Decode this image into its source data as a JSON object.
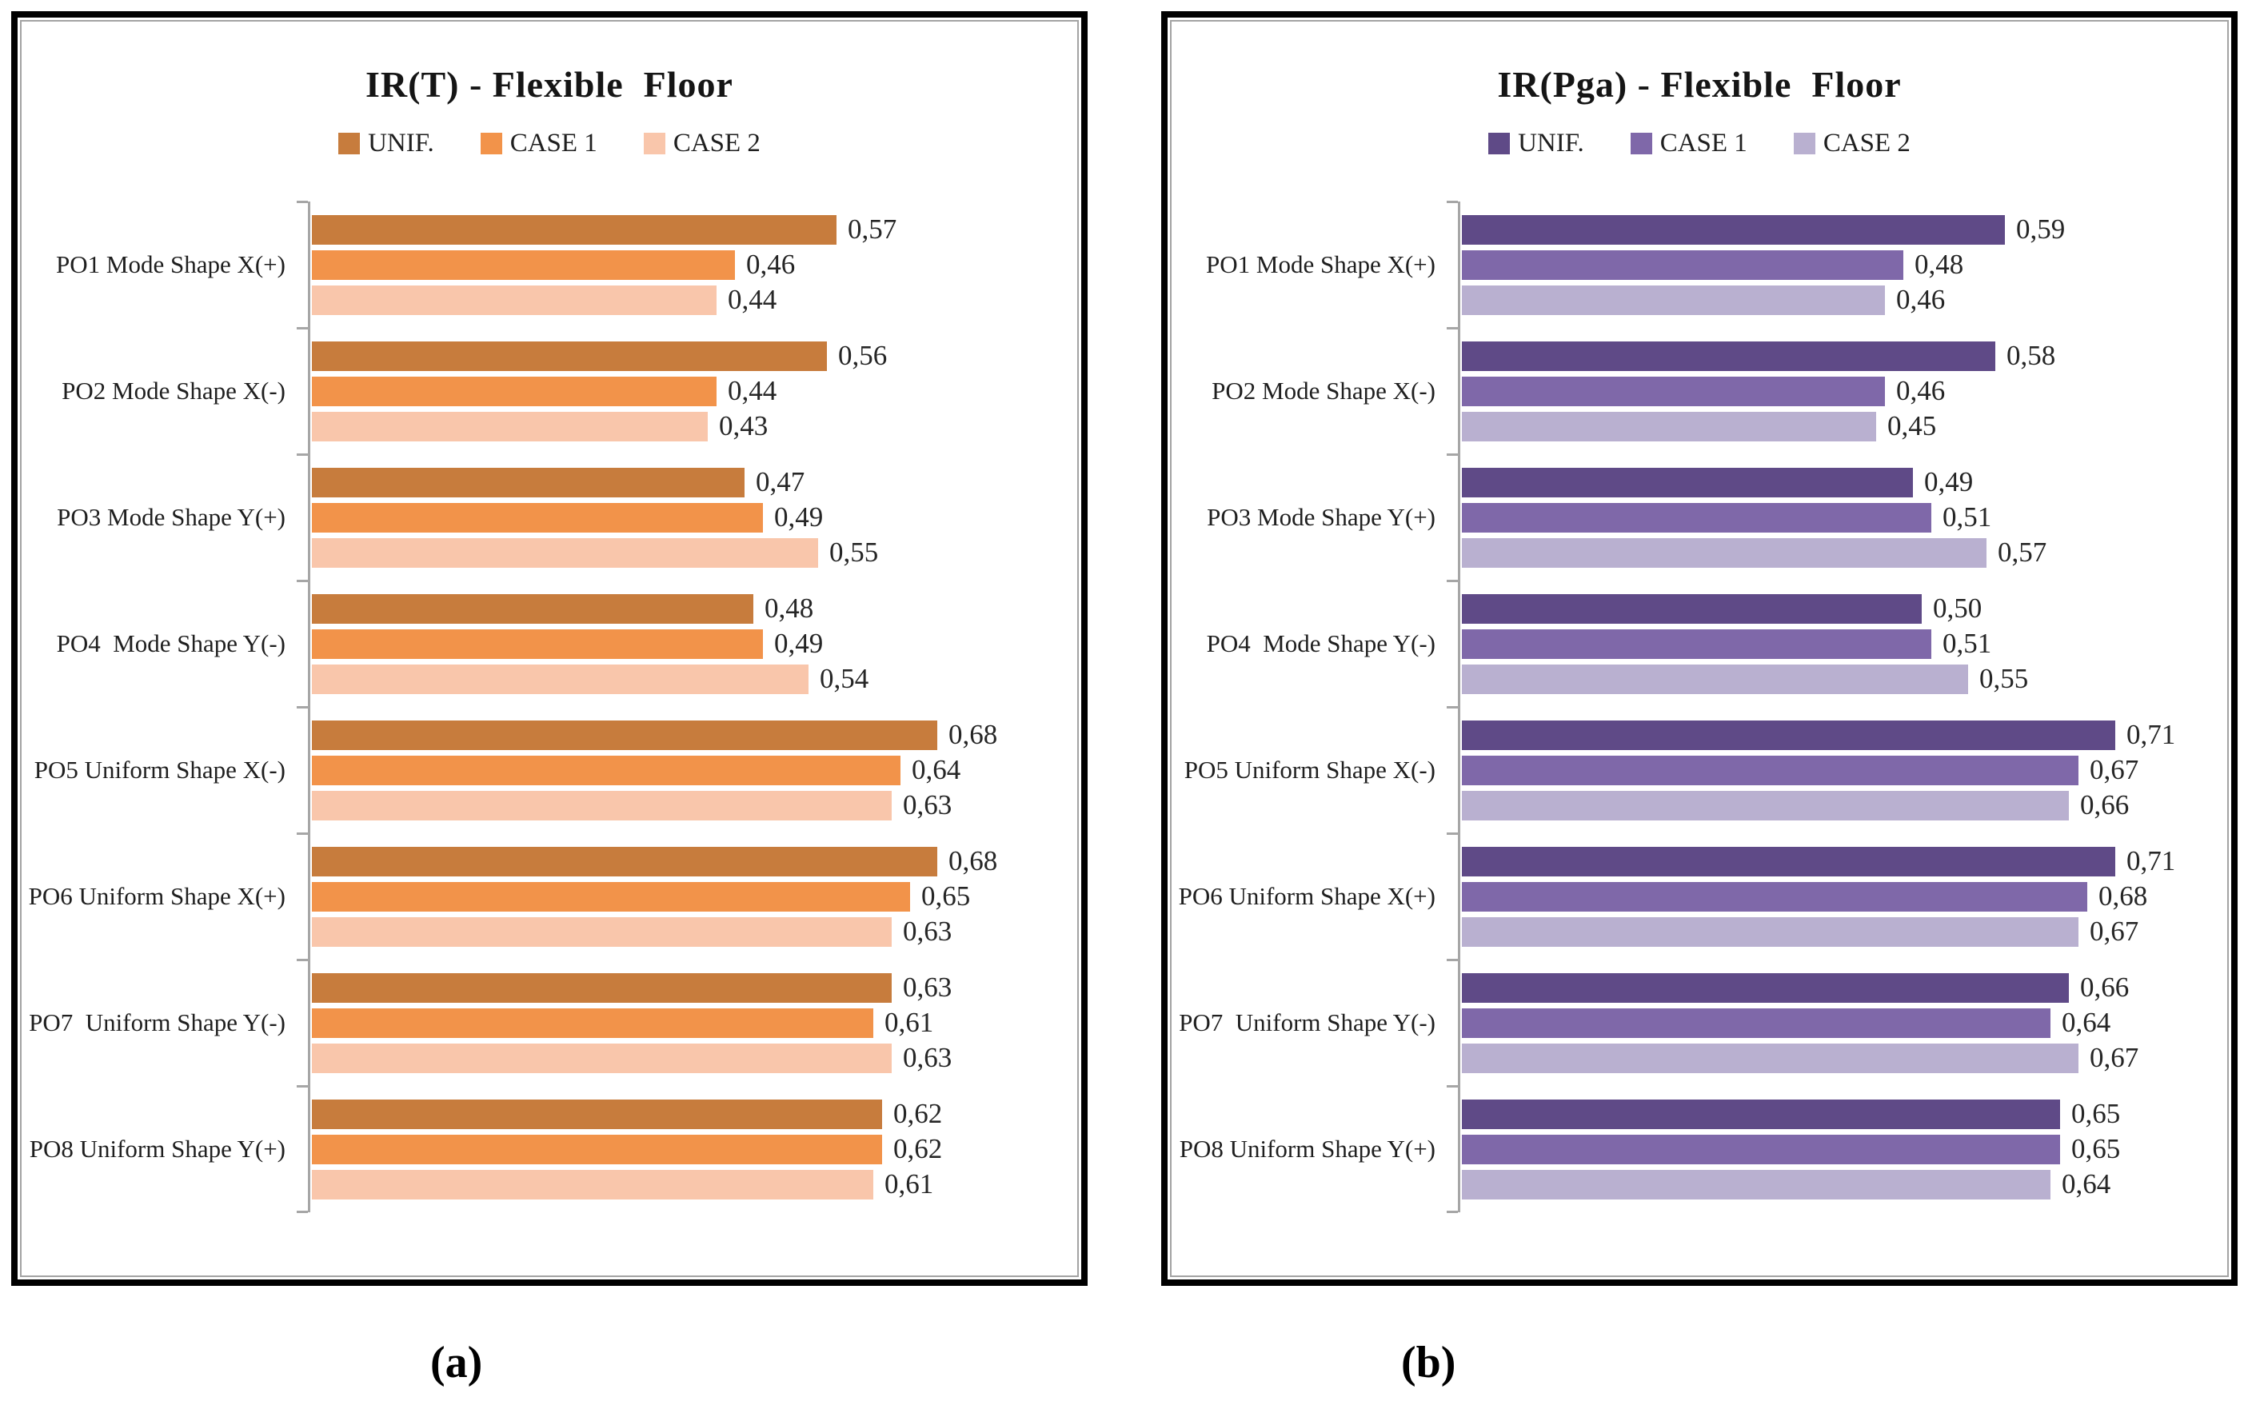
{
  "figure_labels": {
    "a": "(a)",
    "b": "(b)"
  },
  "chart_data": [
    {
      "type": "bar",
      "orientation": "horizontal",
      "title": "IR(T) - Flexible  Floor",
      "legend_position": "top",
      "grid": false,
      "xlim": [
        0,
        0.8
      ],
      "value_label_decimal": "comma",
      "axis_color": "#a6a6a6",
      "categories": [
        "PO1 Mode Shape X(+)",
        "PO2 Mode Shape X(-)",
        "PO3 Mode Shape Y(+)",
        "PO4  Mode Shape Y(-)",
        "PO5 Uniform Shape X(-)",
        "PO6 Uniform Shape X(+)",
        "PO7  Uniform Shape Y(-)",
        "PO8 Uniform Shape Y(+)"
      ],
      "series": [
        {
          "name": "UNIF.",
          "color": "#c77c3d",
          "values": [
            0.57,
            0.56,
            0.47,
            0.48,
            0.68,
            0.68,
            0.63,
            0.62
          ]
        },
        {
          "name": "CASE 1",
          "color": "#f2934a",
          "values": [
            0.46,
            0.44,
            0.49,
            0.49,
            0.64,
            0.65,
            0.61,
            0.62
          ]
        },
        {
          "name": "CASE 2",
          "color": "#f9c6ab",
          "values": [
            0.44,
            0.43,
            0.55,
            0.54,
            0.63,
            0.63,
            0.63,
            0.61
          ]
        }
      ]
    },
    {
      "type": "bar",
      "orientation": "horizontal",
      "title": "IR(Pga) - Flexible  Floor",
      "legend_position": "top",
      "grid": false,
      "xlim": [
        0,
        0.8
      ],
      "value_label_decimal": "comma",
      "axis_color": "#a6a6a6",
      "categories": [
        "PO1 Mode Shape X(+)",
        "PO2 Mode Shape X(-)",
        "PO3 Mode Shape Y(+)",
        "PO4  Mode Shape Y(-)",
        "PO5 Uniform Shape X(-)",
        "PO6 Uniform Shape X(+)",
        "PO7  Uniform Shape Y(-)",
        "PO8 Uniform Shape Y(+)"
      ],
      "series": [
        {
          "name": "UNIF.",
          "color": "#5f4a87",
          "values": [
            0.59,
            0.58,
            0.49,
            0.5,
            0.71,
            0.71,
            0.66,
            0.65
          ]
        },
        {
          "name": "CASE 1",
          "color": "#7f68a9",
          "values": [
            0.48,
            0.46,
            0.51,
            0.51,
            0.67,
            0.68,
            0.64,
            0.65
          ]
        },
        {
          "name": "CASE 2",
          "color": "#b9b0d0",
          "values": [
            0.46,
            0.45,
            0.57,
            0.55,
            0.66,
            0.67,
            0.67,
            0.64
          ]
        }
      ]
    }
  ]
}
